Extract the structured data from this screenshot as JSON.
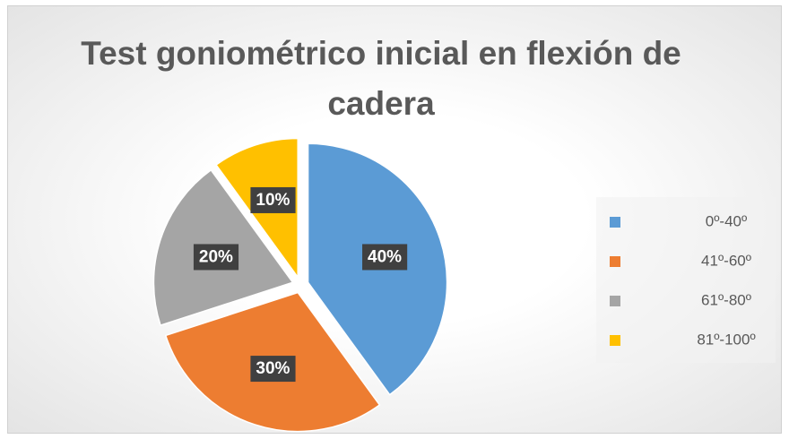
{
  "chart_data": {
    "type": "pie",
    "title": "Test goniométrico inicial en flexión de cadera",
    "categories": [
      "0º-40º",
      "41º-60º",
      "61º-80º",
      "81º-100º"
    ],
    "values": [
      40,
      30,
      20,
      10
    ],
    "value_labels": [
      "40%",
      "30%",
      "20%",
      "10%"
    ],
    "colors": [
      "#5b9bd5",
      "#ed7d31",
      "#a5a5a5",
      "#ffc000"
    ],
    "legend": "right"
  }
}
